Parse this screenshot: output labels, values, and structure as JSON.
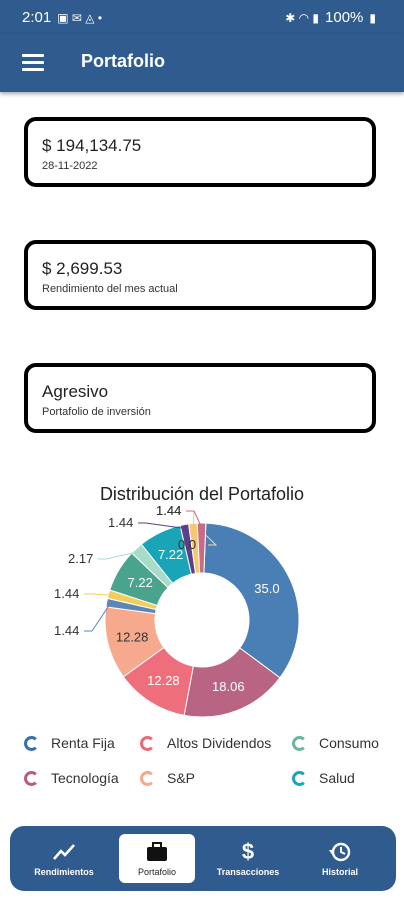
{
  "status_bar": {
    "time": "2:01",
    "battery": "100%"
  },
  "app_bar": {
    "title": "Portafolio"
  },
  "cards": [
    {
      "value": "$ 194,134.75",
      "subtitle": "28-11-2022"
    },
    {
      "value": "$ 2,699.53",
      "subtitle": "Rendimiento del mes actual"
    },
    {
      "value": "Agresivo",
      "subtitle": "Portafolio de inversión"
    }
  ],
  "chart_data": {
    "type": "pie",
    "title": "Distribución del Portafolio",
    "donut": true,
    "slices": [
      {
        "label": "35.0",
        "value": 35.0,
        "color": "#4a7fb5"
      },
      {
        "label": "18.06",
        "value": 18.06,
        "color": "#b86482"
      },
      {
        "label": "12.28",
        "value": 12.28,
        "color": "#ef6e7c"
      },
      {
        "label": "12.28",
        "value": 12.28,
        "color": "#f6a98c"
      },
      {
        "label": "1.44",
        "value": 1.44,
        "color": "#5d86b8"
      },
      {
        "label": "1.44",
        "value": 1.44,
        "color": "#f2cd5e"
      },
      {
        "label": "7.22",
        "value": 7.22,
        "color": "#4aa38d"
      },
      {
        "label": "2.17",
        "value": 2.17,
        "color": "#a8dcc8"
      },
      {
        "label": "7.22",
        "value": 7.22,
        "color": "#1aa4b8"
      },
      {
        "label": "1.44",
        "value": 1.44,
        "color": "#5b3f8a"
      },
      {
        "label": "1.44",
        "value": 1.44,
        "color": "#f7c871"
      },
      {
        "label": "0.0",
        "value": 0.0,
        "color": "#f8d7a0"
      },
      {
        "label": "1.44",
        "value": 1.44,
        "color": "#c96a86"
      }
    ],
    "legend_position": "bottom",
    "legend": [
      {
        "label": "Renta Fija",
        "color": "#3b6fa8"
      },
      {
        "label": "Altos Dividendos",
        "color": "#e86a77"
      },
      {
        "label": "Consumo",
        "color": "#6bb59e"
      },
      {
        "label": "Tecnología",
        "color": "#b85c7c"
      },
      {
        "label": "S&P",
        "color": "#f6a98c"
      },
      {
        "label": "Salud",
        "color": "#1aa4b8"
      }
    ]
  },
  "bottom_nav": [
    {
      "label": "Rendimientos",
      "icon": "trend-chart-icon",
      "active": false
    },
    {
      "label": "Portafolio",
      "icon": "briefcase-icon",
      "active": true
    },
    {
      "label": "Transacciones",
      "icon": "dollar-icon",
      "active": false
    },
    {
      "label": "Historial",
      "icon": "history-icon",
      "active": false
    }
  ]
}
